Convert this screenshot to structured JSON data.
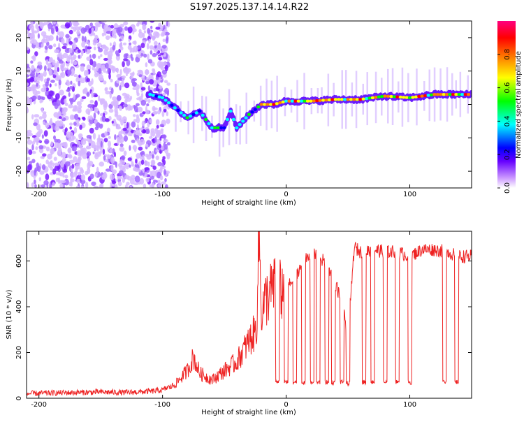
{
  "title": "S197.2025.137.14.14.R22",
  "chart_data": [
    {
      "type": "heatmap",
      "xlabel": "Height of straight line (km)",
      "ylabel": "Frequency (Hz)",
      "xlim": [
        -210,
        150
      ],
      "ylim": [
        -25,
        25
      ],
      "xticks": [
        -200,
        -100,
        0,
        100
      ],
      "yticks": [
        -20,
        -10,
        0,
        10,
        20
      ],
      "colorbar": {
        "label": "Normalized spectral amplitude",
        "range": [
          0.0,
          1.0
        ],
        "ticks": [
          "0.0",
          "0.2",
          "0.4",
          "0.6",
          "0.8"
        ],
        "colors": [
          "#ffffff",
          "#cc99ff",
          "#6600ff",
          "#0000ff",
          "#00ffff",
          "#00ff00",
          "#ffff00",
          "#ff8000",
          "#ff0000",
          "#ff0080"
        ]
      },
      "ridge": {
        "x": [
          -110,
          -100,
          -90,
          -80,
          -70,
          -60,
          -50,
          -45,
          -40,
          -30,
          -20,
          -10,
          0,
          20,
          40,
          60,
          80,
          100,
          120,
          150
        ],
        "y": [
          3,
          2,
          -1,
          -4,
          -2,
          -7,
          -7,
          -2,
          -7,
          -3,
          0,
          0,
          1,
          1,
          1.5,
          1.5,
          2.5,
          2,
          3,
          3
        ]
      }
    },
    {
      "type": "line",
      "xlabel": "Height of straight line (km)",
      "ylabel": "SNR (10 * v/v)",
      "xlim": [
        -210,
        150
      ],
      "ylim": [
        0,
        730
      ],
      "xticks": [
        -200,
        -100,
        0,
        100
      ],
      "yticks": [
        0,
        200,
        400,
        600
      ],
      "color": "#ee2222",
      "x": [
        -210,
        -190,
        -170,
        -150,
        -130,
        -110,
        -100,
        -90,
        -80,
        -75,
        -70,
        -60,
        -50,
        -40,
        -30,
        -24,
        -22,
        -20,
        -15,
        -10,
        -5,
        0,
        5,
        10,
        15,
        20,
        25,
        30,
        35,
        40,
        45,
        50,
        52,
        55,
        60,
        70,
        80,
        90,
        100,
        110,
        120,
        130,
        140,
        150
      ],
      "y": [
        15,
        18,
        20,
        22,
        20,
        25,
        30,
        60,
        120,
        180,
        110,
        80,
        120,
        160,
        250,
        300,
        730,
        380,
        450,
        480,
        470,
        470,
        520,
        560,
        600,
        620,
        630,
        600,
        560,
        500,
        420,
        260,
        420,
        660,
        640,
        650,
        640,
        640,
        620,
        650,
        650,
        640,
        620,
        620
      ],
      "dips": [
        {
          "x": -7,
          "y": 60
        },
        {
          "x": 0,
          "y": 60
        },
        {
          "x": 7,
          "y": 60
        },
        {
          "x": 14,
          "y": 60
        },
        {
          "x": 21,
          "y": 60
        },
        {
          "x": 26,
          "y": 60
        },
        {
          "x": 33,
          "y": 60
        },
        {
          "x": 38,
          "y": 60
        },
        {
          "x": 45,
          "y": 60
        },
        {
          "x": 50,
          "y": 55
        },
        {
          "x": 63,
          "y": 60
        },
        {
          "x": 70,
          "y": 60
        },
        {
          "x": 80,
          "y": 60
        },
        {
          "x": 90,
          "y": 60
        },
        {
          "x": 100,
          "y": 60
        },
        {
          "x": 128,
          "y": 60
        },
        {
          "x": 138,
          "y": 60
        }
      ]
    }
  ]
}
